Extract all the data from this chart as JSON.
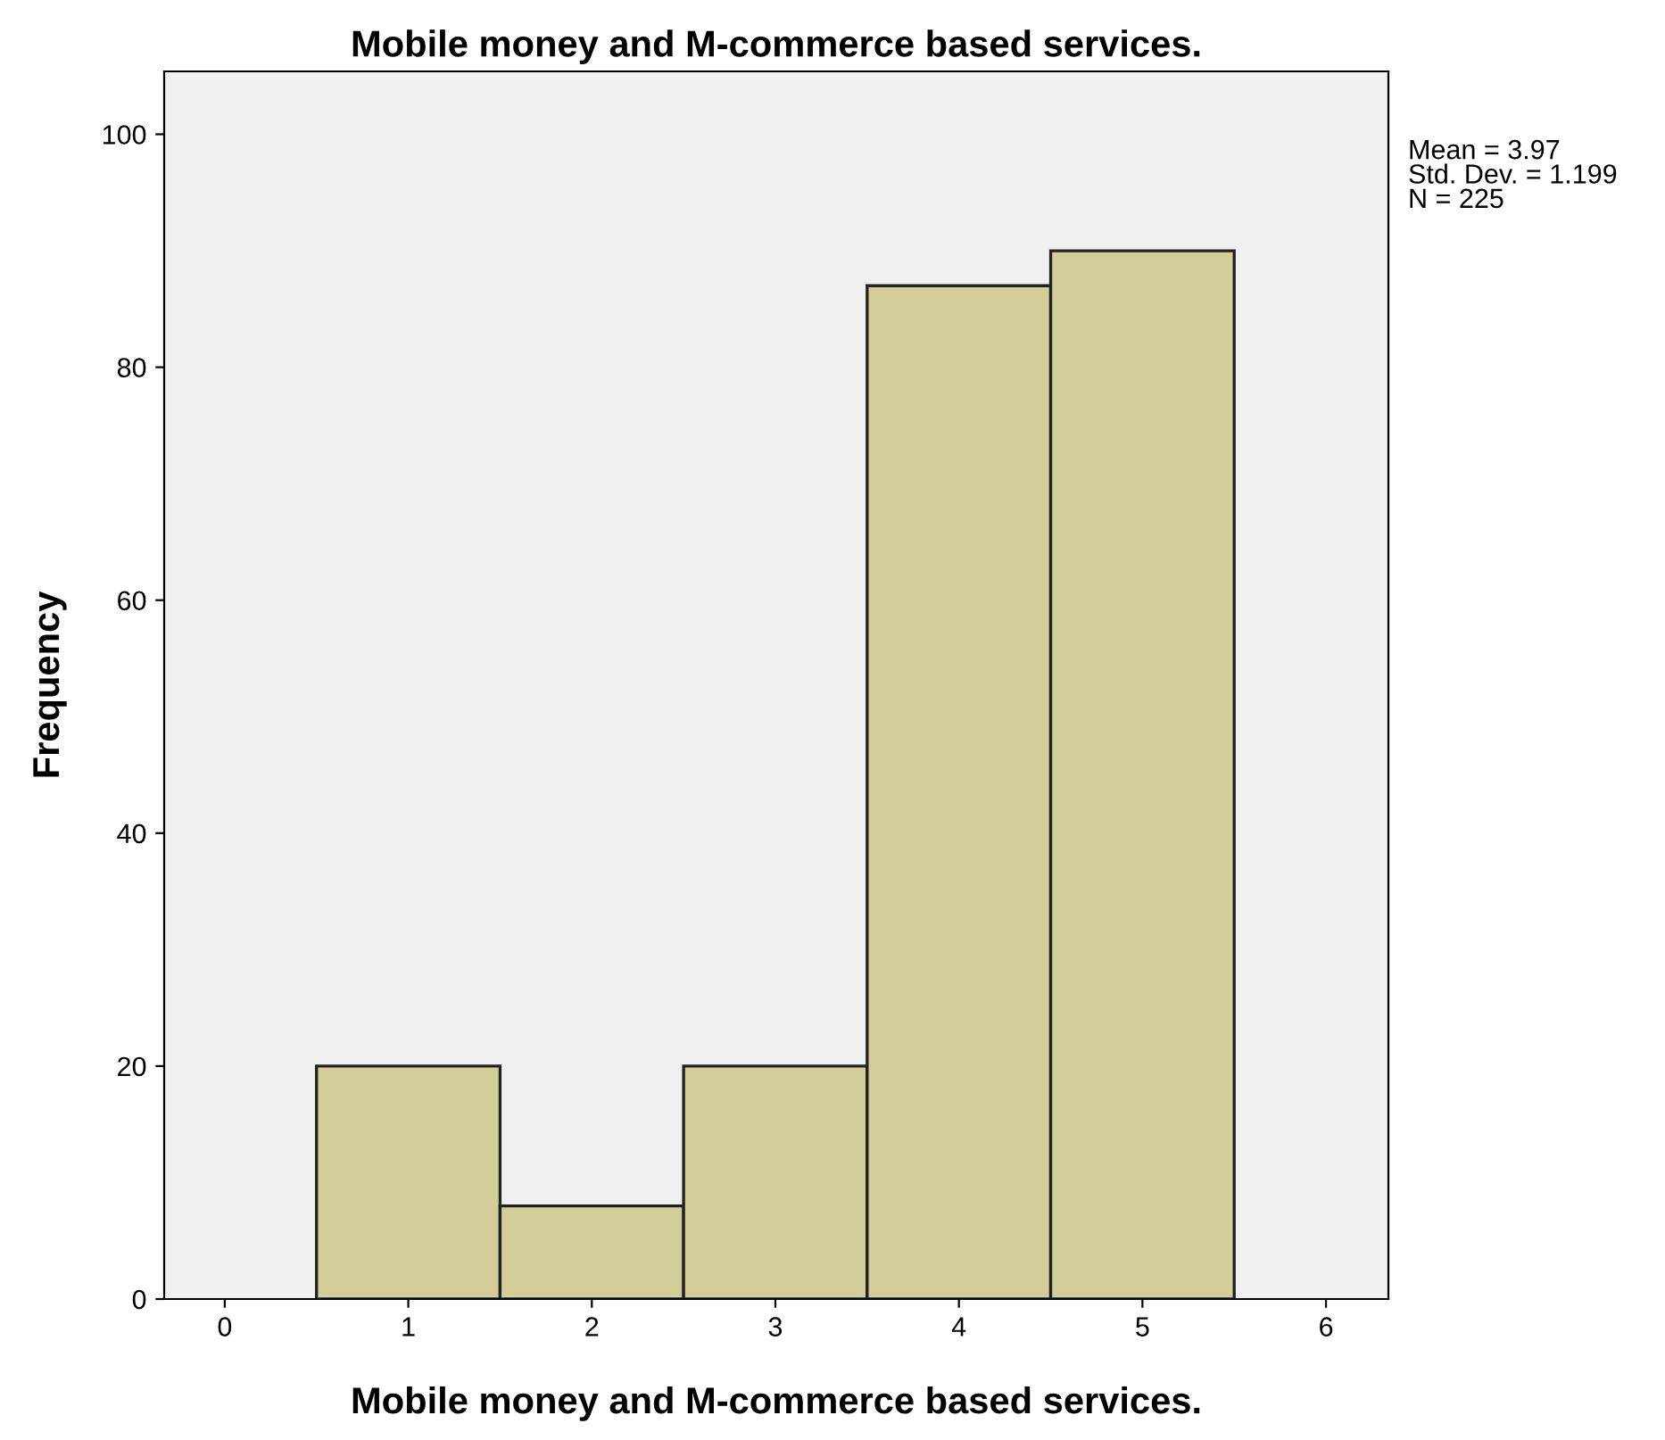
{
  "chart_data": {
    "type": "histogram",
    "title": "Mobile money and M-commerce based services.",
    "xlabel": "Mobile money and M-commerce based services.",
    "ylabel": "Frequency",
    "bins": [
      0.5,
      1.5,
      2.5,
      3.5,
      4.5,
      5.5
    ],
    "values": [
      20,
      8,
      20,
      87,
      90
    ],
    "color": "#d3ce97",
    "xlim": [
      -0.33,
      6.34
    ],
    "ylim": [
      0,
      105.4
    ],
    "xticks": [
      0,
      1,
      2,
      3,
      4,
      5,
      6
    ],
    "yticks": [
      0,
      20,
      40,
      60,
      80,
      100
    ],
    "grid": false,
    "legend": false,
    "annotations": [
      "Mean = 3.97\nStd. Dev. = 1.199\nN = 225"
    ]
  }
}
